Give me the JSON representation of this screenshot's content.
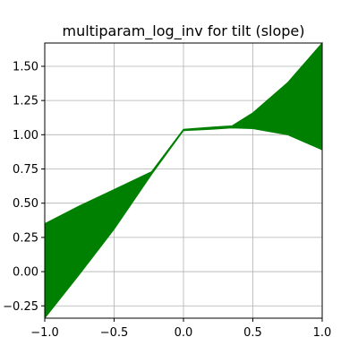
{
  "chart_data": {
    "type": "area",
    "title": "multiparam_log_inv for tilt (slope)",
    "xlabel": "",
    "ylabel": "",
    "xlim": [
      -1.0,
      1.0
    ],
    "ylim": [
      -0.34,
      1.67
    ],
    "xticks": [
      -1.0,
      -0.5,
      0.0,
      0.5,
      1.0
    ],
    "xtick_labels": [
      "−1.0",
      "−0.5",
      "0.0",
      "0.5",
      "1.0"
    ],
    "yticks": [
      -0.25,
      0.0,
      0.25,
      0.5,
      0.75,
      1.0,
      1.25,
      1.5
    ],
    "ytick_labels": [
      "−0.25",
      "0.00",
      "0.25",
      "0.50",
      "0.75",
      "1.00",
      "1.25",
      "1.50"
    ],
    "grid": true,
    "fill_color": "#008000",
    "series": [
      {
        "x": [
          -1.0,
          -0.75,
          -0.5,
          -0.23,
          0.0,
          0.2,
          0.35,
          0.5,
          0.75,
          1.0
        ],
        "upper": [
          0.35,
          0.48,
          0.6,
          0.73,
          1.04,
          1.055,
          1.065,
          1.16,
          1.38,
          1.67
        ],
        "lower": [
          -0.34,
          -0.02,
          0.31,
          0.71,
          1.03,
          1.04,
          1.05,
          1.045,
          1.0,
          0.89
        ]
      }
    ]
  }
}
